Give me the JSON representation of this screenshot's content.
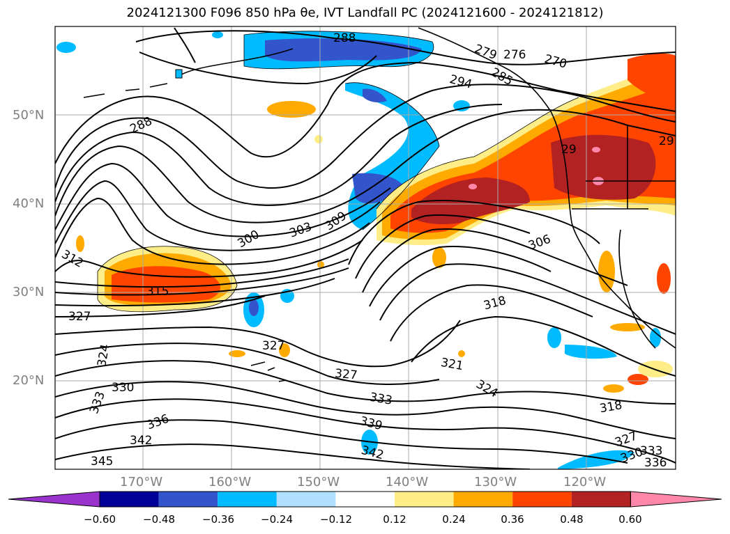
{
  "title": "2024121300 F096 850 hPa θe, IVT Landfall PC (2024121600 - 2024121812)",
  "latitude_labels": [
    "50°N",
    "40°N",
    "30°N",
    "20°N"
  ],
  "longitude_labels": [
    "170°W",
    "160°W",
    "150°W",
    "140°W",
    "130°W",
    "120°W"
  ],
  "contour_labels": [
    "288",
    "288",
    "279",
    "276",
    "270",
    "294",
    "285",
    "29",
    "300",
    "303",
    "309",
    "306",
    "312",
    "315",
    "327",
    "318",
    "327",
    "324",
    "321",
    "327",
    "330",
    "333",
    "333",
    "336",
    "324",
    "318",
    "339",
    "342",
    "345",
    "342",
    "327",
    "330",
    "333",
    "336",
    "29"
  ],
  "colorbar": {
    "ticks": [
      "−0.60",
      "−0.48",
      "−0.36",
      "−0.24",
      "−0.12",
      "0.12",
      "0.24",
      "0.36",
      "0.48",
      "0.60"
    ],
    "colors": [
      "#9933cc",
      "#000099",
      "#3355cc",
      "#00bbff",
      "#b0e0ff",
      "#ffffff",
      "#ffee88",
      "#ffaa00",
      "#ff4400",
      "#b22222",
      "#ff88aa"
    ]
  }
}
